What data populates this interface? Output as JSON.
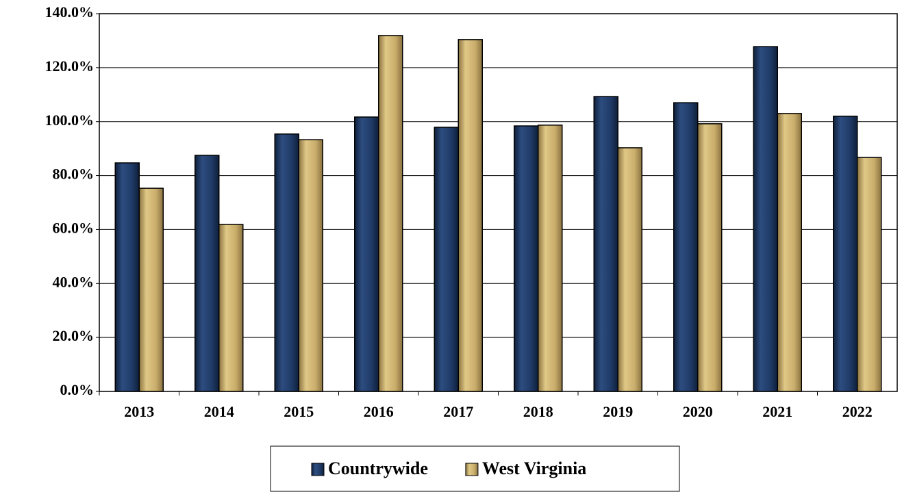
{
  "chart_data": {
    "type": "bar",
    "categories": [
      "2013",
      "2014",
      "2015",
      "2016",
      "2017",
      "2018",
      "2019",
      "2020",
      "2021",
      "2022"
    ],
    "series": [
      {
        "name": "Countrywide",
        "color": "#1f3a66",
        "values": [
          84.7,
          87.5,
          95.4,
          101.7,
          97.9,
          98.4,
          109.3,
          107.0,
          127.8,
          102.0
        ]
      },
      {
        "name": "West Virginia",
        "color": "#c9ad6b",
        "values": [
          75.3,
          61.9,
          93.3,
          131.9,
          130.4,
          98.7,
          90.3,
          99.2,
          103.0,
          86.7
        ]
      }
    ],
    "ylim": [
      0,
      140
    ],
    "yticks": [
      {
        "value": 0,
        "label": "0.0%"
      },
      {
        "value": 20,
        "label": "20.0%"
      },
      {
        "value": 40,
        "label": "40.0%"
      },
      {
        "value": 60,
        "label": "60.0%"
      },
      {
        "value": 80,
        "label": "80.0%"
      },
      {
        "value": 100,
        "label": "100.0%"
      },
      {
        "value": 120,
        "label": "120.0%"
      },
      {
        "value": 140,
        "label": "140.0%"
      }
    ],
    "grid": true,
    "legend": "bottom"
  }
}
